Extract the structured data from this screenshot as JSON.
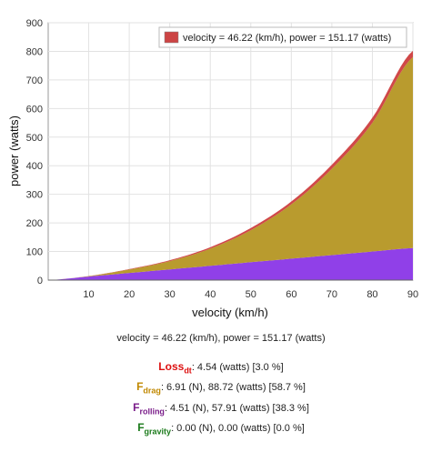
{
  "chart_data": {
    "type": "area",
    "xlabel": "velocity (km/h)",
    "ylabel": "power (watts)",
    "xlim": [
      0,
      90
    ],
    "ylim": [
      0,
      900
    ],
    "xticks": [
      10,
      20,
      30,
      40,
      50,
      60,
      70,
      80,
      90
    ],
    "yticks": [
      0,
      100,
      200,
      300,
      400,
      500,
      600,
      700,
      800,
      900
    ],
    "grid": true,
    "legend_position": "top-right",
    "legend": "velocity = 46.22 (km/h), power = 151.17 (watts)",
    "x": [
      0,
      10,
      20,
      30,
      40,
      50,
      60,
      70,
      80,
      90
    ],
    "series": [
      {
        "key": "rolling",
        "color": "#9040e8",
        "values": [
          0,
          12.5,
          25,
          37.5,
          50,
          62.7,
          75,
          87.5,
          100,
          112
        ]
      },
      {
        "key": "drag",
        "color": "#b99b2e",
        "values": [
          0,
          1.5,
          12,
          29,
          60,
          112,
          190,
          302,
          450,
          668
        ]
      },
      {
        "key": "loss",
        "color": "#d04848",
        "values": [
          0,
          0.3,
          1.5,
          3,
          5,
          7.5,
          10,
          14,
          18,
          22
        ]
      }
    ]
  },
  "colors": {
    "legend_swatch": "#cc4444",
    "loss": "#dd1111",
    "drag": "#c08800",
    "rolling": "#7a1d8a",
    "gravity": "#1a7a1a"
  },
  "info": {
    "summary": "velocity = 46.22 (km/h), power = 151.17 (watts)",
    "loss": {
      "symbol": "Loss",
      "sub": "dt",
      "text": ": 4.54 (watts) [3.0 %]"
    },
    "drag": {
      "symbol": "F",
      "sub": "drag",
      "text": ": 6.91 (N), 88.72 (watts) [58.7 %]"
    },
    "rolling": {
      "symbol": "F",
      "sub": "rolling",
      "text": ": 4.51 (N), 57.91 (watts) [38.3 %]"
    },
    "gravity": {
      "symbol": "F",
      "sub": "gravity",
      "text": ": 0.00 (N), 0.00 (watts) [0.0 %]"
    }
  }
}
